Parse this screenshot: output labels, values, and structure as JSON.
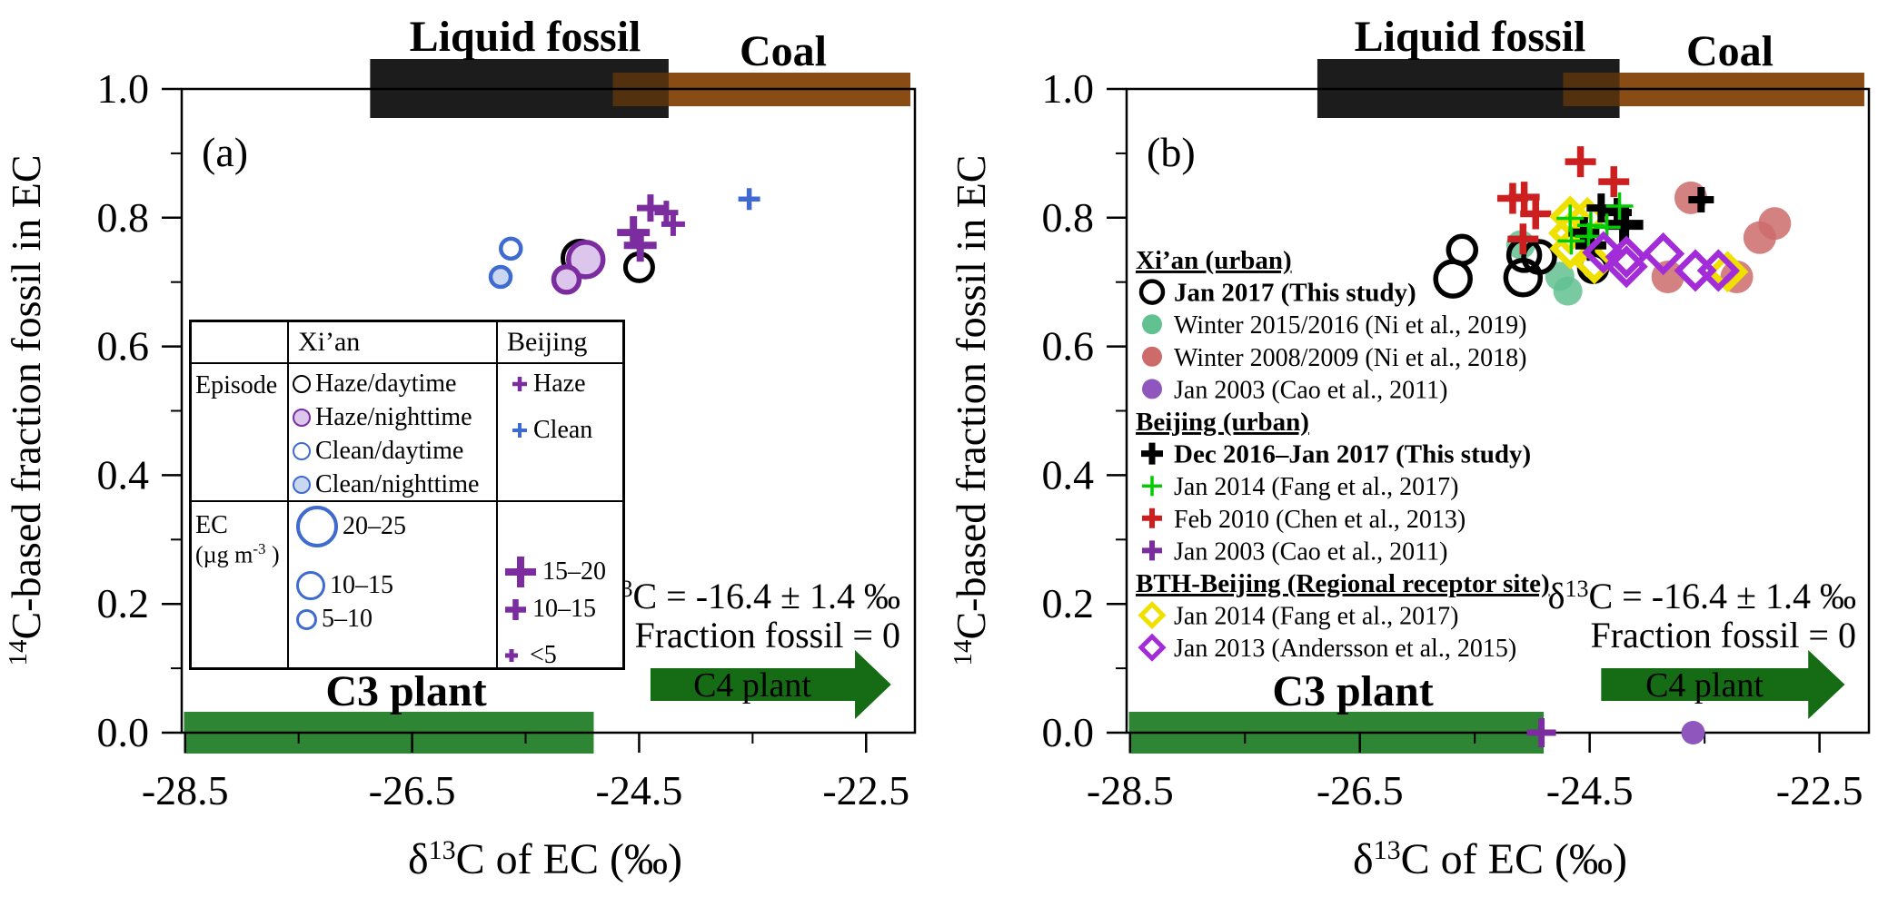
{
  "colors": {
    "black": "#000000",
    "bar_black": "#1c1c1c",
    "coal_brown": "#8a4c15",
    "coal_overlap": "#53300e",
    "coal_text": "#7a3c10",
    "green_bar": "#2e8533",
    "green_arrow": "#156c15",
    "green_text": "#1e7d2a",
    "c3_text": "#1d7c1d",
    "xian_blue": "#3f6bd0",
    "xian_blue_fill": "#c9d7f0",
    "xian_purple": "#7b2da0",
    "xian_purple_fill": "#dcc6ec",
    "green_circle": "#62c191",
    "red_circle": "#cd6b6b",
    "cao_purple": "#8f57be",
    "red_plus": "#cc2020",
    "green_plus": "#00cc00",
    "yellow_diamond": "#f0e000",
    "magenta_diamond": "#a32cd9"
  },
  "shared": {
    "liquid_fossil_label": "Liquid fossil",
    "coal_label": "Coal",
    "c3_label": "C3 plant",
    "c4_label": "C4 plant",
    "xlabel": {
      "sym": "δ",
      "sup": "13",
      "rest": "C of EC (‰)"
    },
    "ylabel": {
      "sup": "14",
      "rest": "C-based fraction fossil in EC"
    },
    "note_line1": {
      "sym": "δ",
      "sup": "13",
      "rest": "C = -16.4 ± 1.4 ‰"
    },
    "note_line2": "Fraction fossil = 0",
    "x_ticks": [
      "-28.5",
      "-26.5",
      "-24.5",
      "-22.5"
    ],
    "x_tick_values": [
      -28.5,
      -26.5,
      -24.5,
      -22.5
    ],
    "x_minor": [
      -27.5,
      -25.5,
      -23.5
    ],
    "y_ticks": [
      "1.0",
      "0.8",
      "0.6",
      "0.4",
      "0.2",
      "0.0"
    ],
    "y_tick_values": [
      1.0,
      0.8,
      0.6,
      0.4,
      0.2,
      0.0
    ],
    "y_minor": [
      0.1,
      0.3,
      0.5,
      0.7,
      0.9
    ]
  },
  "panel_a": {
    "letter": "(a)",
    "table": {
      "col_xian": "Xi’an",
      "col_beijing": "Beijing",
      "row_episode": "Episode",
      "ec_label": "EC",
      "ec_unit_pre": "(µg m",
      "ec_unit_sup": "-3",
      "ec_unit_post": " )",
      "episode_xian": [
        {
          "label": "Haze/daytime"
        },
        {
          "label": "Haze/nighttime"
        },
        {
          "label": "Clean/daytime"
        },
        {
          "label": "Clean/nighttime"
        }
      ],
      "episode_beijing": [
        {
          "label": "Haze"
        },
        {
          "label": "Clean"
        }
      ],
      "ec_xian": [
        {
          "label": "20–25"
        },
        {
          "label": "10–15"
        },
        {
          "label": "5–10"
        }
      ],
      "ec_beijing": [
        {
          "label": "15–20"
        },
        {
          "label": "10–15"
        },
        {
          "label": "<5"
        }
      ]
    }
  },
  "panel_b": {
    "letter": "(b)",
    "legend": {
      "items": [
        {
          "label": "Xi’an (urban)",
          "style": "header",
          "marker": null
        },
        {
          "label": "Jan 2017 (This study)",
          "style": "bold",
          "marker": {
            "type": "circle",
            "stroke": "#000000",
            "fill": "none",
            "sw": 4.5,
            "size": 12
          }
        },
        {
          "label": "Winter 2015/2016 (Ni et al., 2019)",
          "style": "normal",
          "marker": {
            "type": "circle",
            "stroke": "none",
            "fill": "#62c191",
            "sw": 0,
            "size": 11
          }
        },
        {
          "label": "Winter 2008/2009 (Ni et al., 2018)",
          "style": "normal",
          "marker": {
            "type": "circle",
            "stroke": "none",
            "fill": "#cd6b6b",
            "sw": 0,
            "size": 11
          }
        },
        {
          "label": "Jan 2003 (Cao et al., 2011)",
          "style": "normal",
          "marker": {
            "type": "circle",
            "stroke": "none",
            "fill": "#8f57be",
            "sw": 0,
            "size": 11
          }
        },
        {
          "label": "Beijing (urban)",
          "style": "header",
          "marker": null
        },
        {
          "label": "Dec 2016–Jan 2017 (This study)",
          "style": "bold",
          "marker": {
            "type": "plus",
            "stroke": "#000000",
            "fill": "none",
            "sw": 7,
            "size": 12
          }
        },
        {
          "label": "Jan 2014 (Fang et al., 2017)",
          "style": "normal",
          "marker": {
            "type": "plus",
            "stroke": "#00cc00",
            "fill": "none",
            "sw": 3.5,
            "size": 11
          }
        },
        {
          "label": "Feb 2010 (Chen et al., 2013)",
          "style": "normal",
          "marker": {
            "type": "plus",
            "stroke": "#cc2020",
            "fill": "none",
            "sw": 6,
            "size": 11
          }
        },
        {
          "label": "Jan 2003 (Cao et al., 2011)",
          "style": "normal",
          "marker": {
            "type": "plus",
            "stroke": "#7b2da0",
            "fill": "none",
            "sw": 6,
            "size": 11
          }
        },
        {
          "label": "BTH-Beijing (Regional receptor site)",
          "style": "header",
          "marker": null
        },
        {
          "label": "Jan 2014 (Fang  et al., 2017)",
          "style": "normal",
          "marker": {
            "type": "diamond",
            "stroke": "#f0e000",
            "fill": "none",
            "sw": 5,
            "size": 12
          }
        },
        {
          "label": "Jan 2013 (Andersson et al., 2015)",
          "style": "normal",
          "marker": {
            "type": "diamond",
            "stroke": "#a32cd9",
            "fill": "none",
            "sw": 5,
            "size": 12
          }
        }
      ]
    }
  },
  "chart_data": [
    {
      "type": "scatter",
      "panel": "a",
      "title": "",
      "xlabel": "δ13C of EC (‰)",
      "ylabel": "14C-based fraction fossil in EC",
      "xlim": [
        -28.53,
        -22.07
      ],
      "ylim": [
        0.0,
        1.0
      ],
      "x_ticks": [
        -28.5,
        -26.5,
        -24.5,
        -22.5
      ],
      "y_ticks": [
        0.0,
        0.2,
        0.4,
        0.6,
        0.8,
        1.0
      ],
      "grid": false,
      "annotations": {
        "liquid_fossil_range": [
          -26.87,
          -24.24
        ],
        "coal_range": [
          -24.73,
          -22.11
        ],
        "c3_range": [
          -28.51,
          -24.9
        ],
        "c4_arrow_range": [
          -24.4,
          -22.28
        ],
        "note": "δ13C = -16.4 ± 1.4 ‰ ; Fraction fossil = 0"
      },
      "series": [
        {
          "name": "Xi'an Clean/daytime",
          "marker": "circle",
          "stroke": "#3f6bd0",
          "fill": "none",
          "sw": 4.5,
          "points": [
            {
              "x": -25.63,
              "y": 0.752,
              "s": 11
            }
          ]
        },
        {
          "name": "Xi'an Clean/nighttime",
          "marker": "circle",
          "stroke": "#3f6bd0",
          "fill": "#c9d7f0",
          "sw": 4.5,
          "points": [
            {
              "x": -25.72,
              "y": 0.708,
              "s": 11
            }
          ]
        },
        {
          "name": "Xi'an Haze/daytime",
          "marker": "circle",
          "stroke": "#000000",
          "fill": "none",
          "sw": 5,
          "points": [
            {
              "x": -25.02,
              "y": 0.737,
              "s": 19
            },
            {
              "x": -24.5,
              "y": 0.723,
              "s": 15
            }
          ]
        },
        {
          "name": "Xi'an Haze/nighttime",
          "marker": "circle",
          "stroke": "#7b2da0",
          "fill": "#dcc6ec",
          "sw": 5.5,
          "points": [
            {
              "x": -24.97,
              "y": 0.735,
              "s": 19
            },
            {
              "x": -25.14,
              "y": 0.704,
              "s": 14
            }
          ]
        },
        {
          "name": "Beijing Haze",
          "marker": "plus",
          "stroke": "#7b2da0",
          "fill": "none",
          "sw": 7,
          "points": [
            {
              "x": -24.55,
              "y": 0.777,
              "s": 18,
              "w": 8
            },
            {
              "x": -24.49,
              "y": 0.757,
              "s": 18,
              "w": 8
            },
            {
              "x": -24.4,
              "y": 0.815,
              "s": 15,
              "w": 7
            },
            {
              "x": -24.26,
              "y": 0.808,
              "s": 13,
              "w": 6
            },
            {
              "x": -24.2,
              "y": 0.79,
              "s": 13,
              "w": 6
            }
          ]
        },
        {
          "name": "Beijing Clean",
          "marker": "plus",
          "stroke": "#3f6bd0",
          "fill": "none",
          "sw": 5.5,
          "points": [
            {
              "x": -23.53,
              "y": 0.829,
              "s": 12,
              "w": 5.5
            }
          ]
        }
      ]
    },
    {
      "type": "scatter",
      "panel": "b",
      "title": "",
      "xlabel": "δ13C of EC (‰)",
      "ylabel": "14C-based fraction fossil in EC",
      "xlim": [
        -28.53,
        -22.07
      ],
      "ylim": [
        0.0,
        1.0
      ],
      "x_ticks": [
        -28.5,
        -26.5,
        -24.5,
        -22.5
      ],
      "y_ticks": [
        0.0,
        0.2,
        0.4,
        0.6,
        0.8,
        1.0
      ],
      "grid": false,
      "annotations": {
        "liquid_fossil_range": [
          -26.87,
          -24.24
        ],
        "coal_range": [
          -24.73,
          -22.11
        ],
        "c3_range": [
          -28.51,
          -24.9
        ],
        "c4_arrow_range": [
          -24.4,
          -22.28
        ],
        "note": "δ13C = -16.4 ± 1.4 ‰ ; Fraction fossil = 0"
      },
      "series": [
        {
          "name": "Xi'an Winter 2008/2009 (Ni et al., 2018)",
          "marker": "circle",
          "stroke": "none",
          "fill": "#cd6b6b",
          "sw": 0,
          "fo": 0.85,
          "points": [
            {
              "x": -23.62,
              "y": 0.831,
              "s": 18
            },
            {
              "x": -23.02,
              "y": 0.769,
              "s": 18
            },
            {
              "x": -22.89,
              "y": 0.791,
              "s": 18
            },
            {
              "x": -23.82,
              "y": 0.708,
              "s": 18
            },
            {
              "x": -23.22,
              "y": 0.708,
              "s": 18
            }
          ]
        },
        {
          "name": "Xi'an Winter 2015/2016 (Ni et al., 2019)",
          "marker": "circle",
          "stroke": "none",
          "fill": "#62c191",
          "sw": 0,
          "fo": 0.85,
          "points": [
            {
              "x": -25.1,
              "y": 0.758,
              "s": 16
            },
            {
              "x": -24.76,
              "y": 0.709,
              "s": 16
            },
            {
              "x": -24.69,
              "y": 0.686,
              "s": 16
            }
          ]
        },
        {
          "name": "Xi'an Jan 2017 (This study)",
          "marker": "circle",
          "stroke": "#000000",
          "fill": "none",
          "sw": 5.5,
          "points": [
            {
              "x": -25.61,
              "y": 0.75,
              "s": 15
            },
            {
              "x": -25.69,
              "y": 0.705,
              "s": 19
            },
            {
              "x": -25.07,
              "y": 0.742,
              "s": 17
            },
            {
              "x": -24.94,
              "y": 0.739,
              "s": 17
            },
            {
              "x": -25.08,
              "y": 0.707,
              "s": 19
            },
            {
              "x": -24.47,
              "y": 0.722,
              "s": 15
            }
          ]
        },
        {
          "name": "Beijing Feb 2010 (Chen et al., 2013)",
          "marker": "plus",
          "stroke": "#cc2020",
          "fill": "none",
          "sw": 7.5,
          "points": [
            {
              "x": -24.58,
              "y": 0.887,
              "s": 17
            },
            {
              "x": -24.29,
              "y": 0.856,
              "s": 17
            },
            {
              "x": -25.17,
              "y": 0.83,
              "s": 17
            },
            {
              "x": -25.07,
              "y": 0.832,
              "s": 17
            },
            {
              "x": -24.97,
              "y": 0.806,
              "s": 17
            },
            {
              "x": -25.08,
              "y": 0.767,
              "s": 17
            }
          ]
        },
        {
          "name": "BTH-Beijing Jan 2014 (Fang et al., 2017)",
          "marker": "diamond",
          "stroke": "#f0e000",
          "fill": "none",
          "sw": 7,
          "points": [
            {
              "x": -24.67,
              "y": 0.802,
              "s": 18
            },
            {
              "x": -24.52,
              "y": 0.8,
              "s": 18
            },
            {
              "x": -24.68,
              "y": 0.776,
              "s": 18
            },
            {
              "x": -24.67,
              "y": 0.752,
              "s": 18
            },
            {
              "x": -24.46,
              "y": 0.729,
              "s": 18
            },
            {
              "x": -23.3,
              "y": 0.716,
              "s": 18
            }
          ]
        },
        {
          "name": "Beijing Dec 2016–Jan 2017 (This study)",
          "marker": "plus",
          "stroke": "#000000",
          "fill": "none",
          "sw": 9,
          "points": [
            {
              "x": -24.55,
              "y": 0.777,
              "s": 17,
              "w": 9
            },
            {
              "x": -24.49,
              "y": 0.757,
              "s": 17,
              "w": 9
            },
            {
              "x": -24.4,
              "y": 0.815,
              "s": 16,
              "w": 8
            },
            {
              "x": -24.26,
              "y": 0.808,
              "s": 16,
              "w": 8
            },
            {
              "x": -24.2,
              "y": 0.789,
              "s": 21,
              "w": 11
            },
            {
              "x": -23.53,
              "y": 0.828,
              "s": 14,
              "w": 8
            }
          ]
        },
        {
          "name": "Beijing Jan 2014 (Fang et al., 2017)",
          "marker": "plus",
          "stroke": "#00cc00",
          "fill": "none",
          "sw": 3.5,
          "points": [
            {
              "x": -24.67,
              "y": 0.799,
              "s": 15
            },
            {
              "x": -24.51,
              "y": 0.771,
              "s": 15
            },
            {
              "x": -24.49,
              "y": 0.788,
              "s": 15
            },
            {
              "x": -24.35,
              "y": 0.785,
              "s": 15
            },
            {
              "x": -24.24,
              "y": 0.818,
              "s": 15
            },
            {
              "x": -24.66,
              "y": 0.764,
              "s": 15
            }
          ]
        },
        {
          "name": "BTH-Beijing Jan 2013 (Andersson et al., 2015)",
          "marker": "diamond",
          "stroke": "#a32cd9",
          "fill": "none",
          "sw": 6.5,
          "points": [
            {
              "x": -24.38,
              "y": 0.746,
              "s": 19
            },
            {
              "x": -24.18,
              "y": 0.739,
              "s": 19
            },
            {
              "x": -24.18,
              "y": 0.724,
              "s": 19
            },
            {
              "x": -23.86,
              "y": 0.744,
              "s": 19
            },
            {
              "x": -23.58,
              "y": 0.718,
              "s": 19
            },
            {
              "x": -23.38,
              "y": 0.718,
              "s": 19
            }
          ]
        },
        {
          "name": "Xi'an Jan 2003 (Cao et al., 2011)",
          "marker": "circle",
          "stroke": "none",
          "fill": "#8f57be",
          "sw": 0,
          "points": [
            {
              "x": -23.6,
              "y": 0.0,
              "s": 13
            }
          ]
        },
        {
          "name": "Beijing Jan 2003 (Cao et al., 2011)",
          "marker": "plus",
          "stroke": "#7b2da0",
          "fill": "none",
          "sw": 7,
          "points": [
            {
              "x": -24.92,
              "y": 0.0,
              "s": 16,
              "w": 7
            }
          ]
        }
      ]
    }
  ]
}
